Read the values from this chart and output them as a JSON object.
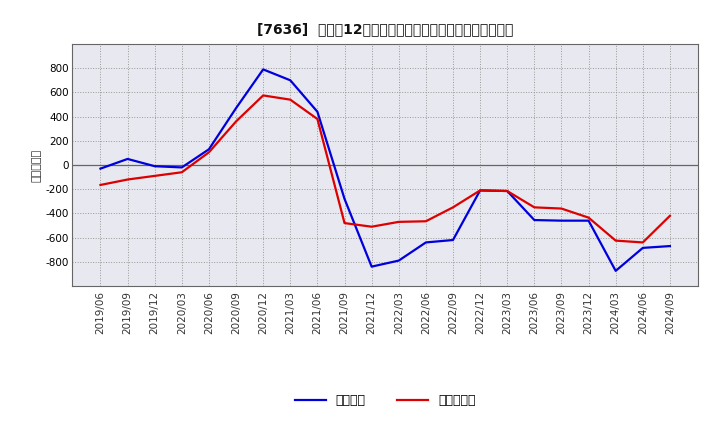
{
  "title": "[7636]  利益だ12か月移動合計の対前年同期増減額の推移",
  "ylabel": "（百万円）",
  "ylim": [
    -1000,
    1000
  ],
  "yticks": [
    -800,
    -600,
    -400,
    -200,
    0,
    200,
    400,
    600,
    800
  ],
  "background_color": "#ffffff",
  "plot_bg_color": "#e8e8f0",
  "grid_color": "#999999",
  "line1_color": "#0000dd",
  "line2_color": "#dd0000",
  "line1_label": "経常利益",
  "line2_label": "当期純利益",
  "dates": [
    "2019/06",
    "2019/09",
    "2019/12",
    "2020/03",
    "2020/06",
    "2020/09",
    "2020/12",
    "2021/03",
    "2021/06",
    "2021/09",
    "2021/12",
    "2022/03",
    "2022/06",
    "2022/09",
    "2022/12",
    "2023/03",
    "2023/06",
    "2023/09",
    "2023/12",
    "2024/03",
    "2024/06",
    "2024/09"
  ],
  "line1_values": [
    -30,
    50,
    -10,
    -20,
    130,
    470,
    790,
    700,
    440,
    -280,
    -840,
    -790,
    -640,
    -620,
    -210,
    -215,
    -455,
    -460,
    -460,
    -875,
    -685,
    -670
  ],
  "line2_values": [
    -165,
    -120,
    -90,
    -60,
    105,
    360,
    575,
    540,
    380,
    -480,
    -510,
    -470,
    -465,
    -350,
    -210,
    -215,
    -350,
    -360,
    -435,
    -625,
    -640,
    -420
  ]
}
